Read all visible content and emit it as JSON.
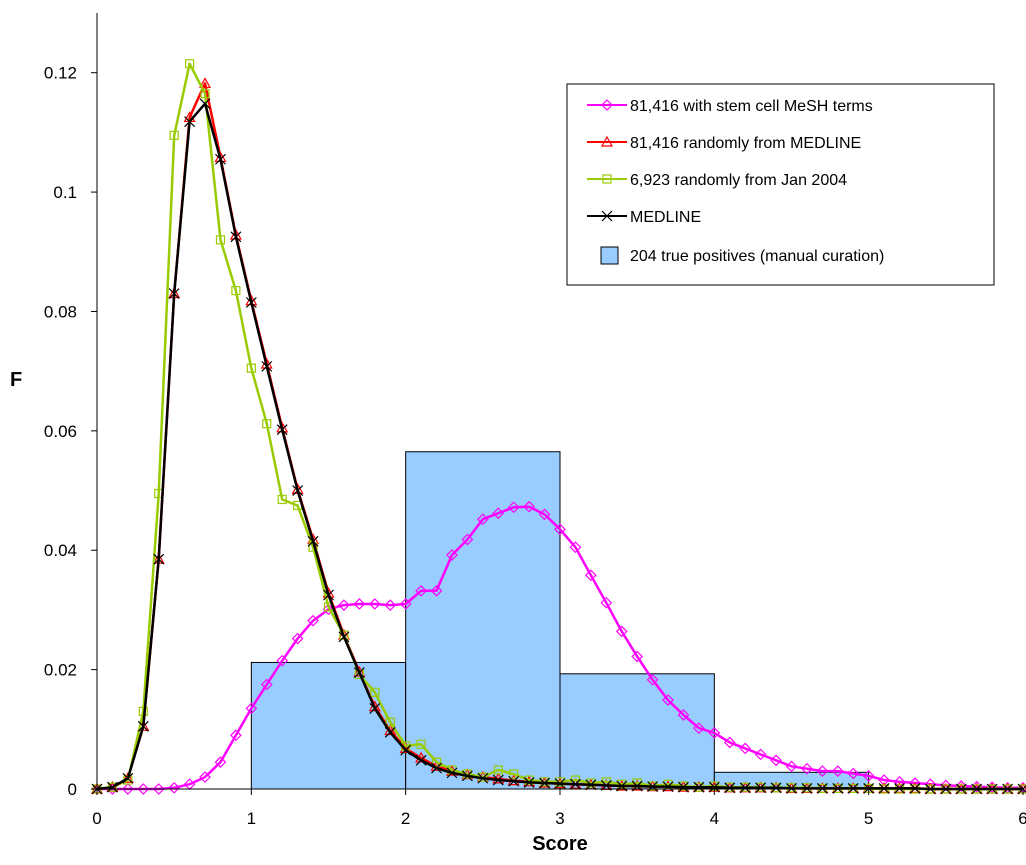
{
  "chart_data": {
    "type": "line",
    "xlabel": "Score",
    "ylabel": "F",
    "xlim": [
      0,
      6
    ],
    "ylim": [
      0,
      0.13
    ],
    "x_ticks": [
      "0",
      "1",
      "2",
      "3",
      "4",
      "5",
      "6"
    ],
    "y_ticks": [
      "0",
      "0.02",
      "0.04",
      "0.06",
      "0.08",
      "0.1",
      "0.12"
    ],
    "grid": false,
    "legend_position": "top-right",
    "series": [
      {
        "name": "81,416 with stem cell MeSH terms",
        "color": "#ff00ff",
        "marker": "diamond",
        "x": [
          0,
          0.1,
          0.2,
          0.3,
          0.4,
          0.5,
          0.6,
          0.7,
          0.8,
          0.9,
          1.0,
          1.1,
          1.2,
          1.3,
          1.4,
          1.5,
          1.6,
          1.7,
          1.8,
          1.9,
          2.0,
          2.1,
          2.2,
          2.3,
          2.4,
          2.5,
          2.6,
          2.7,
          2.8,
          2.9,
          3.0,
          3.1,
          3.2,
          3.3,
          3.4,
          3.5,
          3.6,
          3.7,
          3.8,
          3.9,
          4.0,
          4.1,
          4.2,
          4.3,
          4.4,
          4.5,
          4.6,
          4.7,
          4.8,
          4.9,
          5.0,
          5.1,
          5.2,
          5.3,
          5.4,
          5.5,
          5.6,
          5.7,
          5.8,
          5.9,
          6.0
        ],
        "y": [
          0,
          0,
          0,
          0,
          0,
          0.0002,
          0.0008,
          0.002,
          0.0045,
          0.009,
          0.0135,
          0.0175,
          0.0215,
          0.0252,
          0.0282,
          0.0301,
          0.0308,
          0.031,
          0.031,
          0.0308,
          0.031,
          0.0332,
          0.0332,
          0.0392,
          0.0418,
          0.0452,
          0.0462,
          0.0472,
          0.0473,
          0.046,
          0.0435,
          0.0405,
          0.0358,
          0.0312,
          0.0264,
          0.0222,
          0.0183,
          0.0149,
          0.0124,
          0.0102,
          0.0094,
          0.0078,
          0.0068,
          0.0058,
          0.0048,
          0.0038,
          0.0034,
          0.003,
          0.003,
          0.0026,
          0.0022,
          0.0015,
          0.0012,
          0.001,
          0.0008,
          0.0006,
          0.0005,
          0.0004,
          0.0003,
          0.0002,
          0.0002
        ]
      },
      {
        "name": "81,416 randomly from MEDLINE",
        "color": "#ff0000",
        "marker": "triangle",
        "x": [
          0,
          0.1,
          0.2,
          0.3,
          0.4,
          0.5,
          0.6,
          0.7,
          0.8,
          0.9,
          1.0,
          1.1,
          1.2,
          1.3,
          1.4,
          1.5,
          1.6,
          1.7,
          1.8,
          1.9,
          2.0,
          2.1,
          2.2,
          2.3,
          2.4,
          2.5,
          2.6,
          2.7,
          2.8,
          2.9,
          3.0,
          3.1,
          3.2,
          3.3,
          3.4,
          3.5,
          3.6,
          3.7,
          3.8,
          3.9,
          4.0,
          4.1,
          4.2,
          4.3,
          4.4,
          4.5,
          4.6,
          4.7,
          4.8,
          4.9,
          5.0,
          5.1,
          5.2,
          5.3,
          5.4,
          5.5,
          5.6,
          5.7,
          5.8,
          5.9,
          6.0
        ],
        "y": [
          0,
          0.0003,
          0.0018,
          0.0105,
          0.0385,
          0.083,
          0.1125,
          0.1182,
          0.1058,
          0.0928,
          0.0818,
          0.0712,
          0.0605,
          0.0502,
          0.0418,
          0.0328,
          0.0258,
          0.0196,
          0.0138,
          0.0098,
          0.0068,
          0.0052,
          0.0038,
          0.003,
          0.0024,
          0.002,
          0.0017,
          0.0014,
          0.0012,
          0.001,
          0.0009,
          0.0008,
          0.0007,
          0.0006,
          0.0005,
          0.0005,
          0.0004,
          0.0004,
          0.0003,
          0.0003,
          0.0003,
          0.0002,
          0.0002,
          0.0002,
          0.0002,
          0.0001,
          0.0001,
          0.0001,
          0.0001,
          0.0001,
          0.0001,
          0.0001,
          0.0001,
          0.0001,
          0,
          0,
          0,
          0,
          0,
          0,
          0
        ]
      },
      {
        "name": "6,923 randomly from Jan 2004",
        "color": "#99cc00",
        "marker": "square",
        "x": [
          0,
          0.1,
          0.2,
          0.3,
          0.4,
          0.5,
          0.6,
          0.7,
          0.8,
          0.9,
          1.0,
          1.1,
          1.2,
          1.3,
          1.4,
          1.5,
          1.6,
          1.7,
          1.8,
          1.9,
          2.0,
          2.1,
          2.2,
          2.3,
          2.4,
          2.5,
          2.6,
          2.7,
          2.8,
          2.9,
          3.0,
          3.1,
          3.2,
          3.3,
          3.4,
          3.5,
          3.6,
          3.7,
          3.8,
          3.9,
          4.0,
          4.1,
          4.2,
          4.3,
          4.4,
          4.5,
          4.6,
          4.7,
          4.8,
          4.9,
          5.0,
          5.1,
          5.2,
          5.3,
          5.4,
          5.5,
          5.6,
          5.7,
          5.8,
          5.9,
          6.0
        ],
        "y": [
          0,
          0.0003,
          0.0015,
          0.013,
          0.0495,
          0.1095,
          0.1215,
          0.1165,
          0.092,
          0.0835,
          0.0705,
          0.0612,
          0.0485,
          0.0475,
          0.0405,
          0.0305,
          0.0258,
          0.0192,
          0.0162,
          0.0112,
          0.0072,
          0.0075,
          0.0045,
          0.0032,
          0.0025,
          0.002,
          0.0032,
          0.0025,
          0.0015,
          0.0012,
          0.0012,
          0.0015,
          0.001,
          0.0012,
          0.0008,
          0.001,
          0.0005,
          0.0008,
          0.0005,
          0.0003,
          0.0005,
          0.0003,
          0.0003,
          0.0003,
          0.0002,
          0.0002,
          0.0002,
          0.0001,
          0.0001,
          0.0001,
          0.0001,
          0,
          0,
          0,
          0,
          0,
          0,
          0,
          0,
          0,
          0
        ]
      },
      {
        "name": "MEDLINE",
        "color": "#000000",
        "marker": "star",
        "x": [
          0,
          0.1,
          0.2,
          0.3,
          0.4,
          0.5,
          0.6,
          0.7,
          0.8,
          0.9,
          1.0,
          1.1,
          1.2,
          1.3,
          1.4,
          1.5,
          1.6,
          1.7,
          1.8,
          1.9,
          2.0,
          2.1,
          2.2,
          2.3,
          2.4,
          2.5,
          2.6,
          2.7,
          2.8,
          2.9,
          3.0,
          3.1,
          3.2,
          3.3,
          3.4,
          3.5,
          3.6,
          3.7,
          3.8,
          3.9,
          4.0,
          4.1,
          4.2,
          4.3,
          4.4,
          4.5,
          4.6,
          4.7,
          4.8,
          4.9,
          5.0,
          5.1,
          5.2,
          5.3,
          5.4,
          5.5,
          5.6,
          5.7,
          5.8,
          5.9,
          6.0
        ],
        "y": [
          0,
          0.0003,
          0.0018,
          0.0105,
          0.0385,
          0.083,
          0.1118,
          0.1148,
          0.1055,
          0.0925,
          0.0815,
          0.0708,
          0.0602,
          0.05,
          0.0415,
          0.0325,
          0.0255,
          0.0195,
          0.0135,
          0.0095,
          0.0065,
          0.0048,
          0.0035,
          0.0027,
          0.0022,
          0.0018,
          0.0015,
          0.0013,
          0.0011,
          0.001,
          0.0009,
          0.0008,
          0.0007,
          0.0006,
          0.0005,
          0.0005,
          0.0004,
          0.0004,
          0.0003,
          0.0003,
          0.0003,
          0.0002,
          0.0002,
          0.0002,
          0.0002,
          0.0001,
          0.0001,
          0.0001,
          0.0001,
          0.0001,
          0.0001,
          0.0001,
          0.0001,
          0.0001,
          0,
          0,
          0,
          0,
          0,
          0,
          0
        ]
      }
    ],
    "bars": {
      "name": "204 true positives (manual curation)",
      "color": "#99ccff",
      "edges": [
        1,
        2,
        3,
        4,
        5
      ],
      "values": [
        0.0212,
        0.0565,
        0.0193,
        0.0028
      ]
    }
  }
}
